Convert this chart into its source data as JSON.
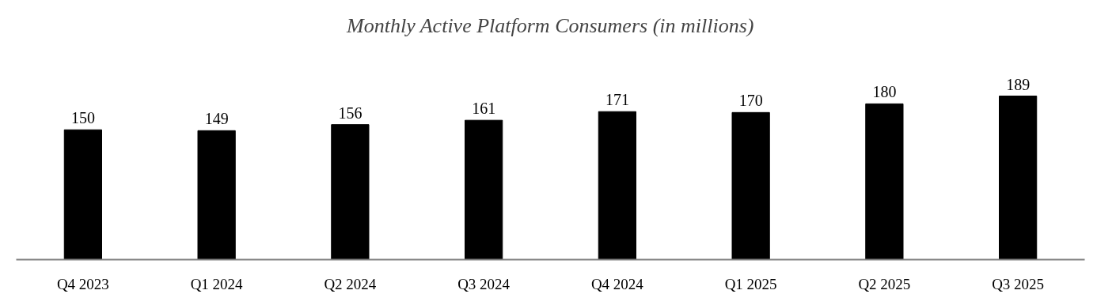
{
  "chart_data": {
    "type": "bar",
    "title": "Monthly Active Platform Consumers (in millions)",
    "categories": [
      "Q4 2023",
      "Q1 2024",
      "Q2 2024",
      "Q3 2024",
      "Q4 2024",
      "Q1 2025",
      "Q2 2025",
      "Q3 2025"
    ],
    "values": [
      150,
      149,
      156,
      161,
      171,
      170,
      180,
      189
    ],
    "color": "#000000",
    "data_labels": true,
    "grid": false
  }
}
